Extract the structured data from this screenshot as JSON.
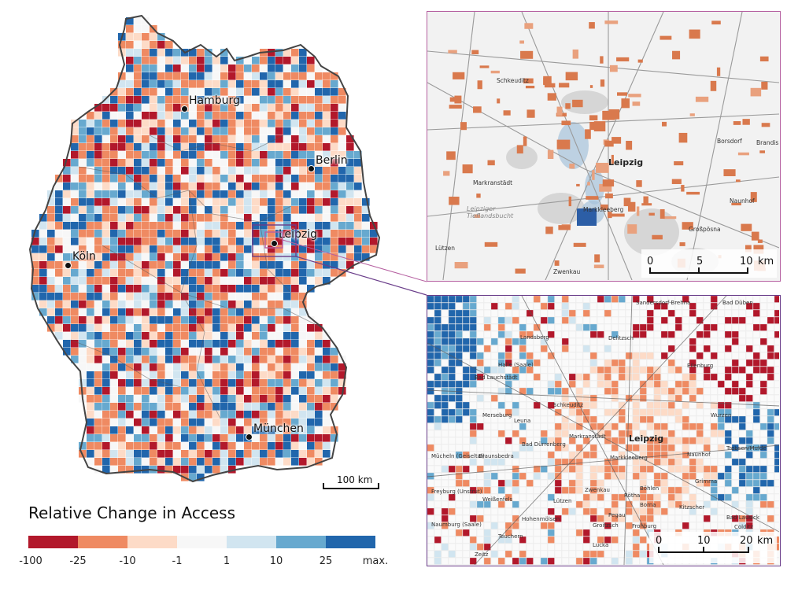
{
  "main_map": {
    "cities": [
      {
        "name": "Hamburg"
      },
      {
        "name": "Berlin"
      },
      {
        "name": "Leipzig"
      },
      {
        "name": "Köln"
      },
      {
        "name": "München"
      }
    ],
    "scale_label": "100 km"
  },
  "inset_top": {
    "city_label": "Leipzig",
    "place_labels": [
      "Schkeuditz",
      "Markranstädt",
      "Markkleeberg",
      "Lützen",
      "Zwenkau",
      "Naunhof",
      "Borsdorf",
      "Brandis",
      "Großpösna",
      "Leipziger Tieflandsbucht"
    ],
    "scale": {
      "ticks": [
        "0",
        "5",
        "10"
      ],
      "unit": "km"
    }
  },
  "inset_bottom": {
    "city_label": "Leipzig",
    "place_labels": [
      "Halle (Saale)",
      "Landsberg",
      "Delitzsch",
      "Schkeuditz",
      "Merseburg",
      "Leuna",
      "Markranstädt",
      "Markkleeberg",
      "Naunhof",
      "Grimma",
      "Borna",
      "Eilenburg",
      "Wurzen",
      "Bad Düben",
      "Zwenkau",
      "Weißenfels",
      "Hohenmölsen",
      "Pegau",
      "Groitzsch",
      "Lucka",
      "Bad Lausick",
      "Colditz",
      "Teuchern",
      "Braunsbedra",
      "Mücheln (Geiseltal)",
      "Bad Dürrenberg",
      "Lützen",
      "Naumburg (Saale)",
      "Freyburg (Unstrut)",
      "Sandersdorf-Brehna",
      "Bad Lauchstädt",
      "Zeitz",
      "Böhlen",
      "Rötha",
      "Frohburg",
      "Kitzscher",
      "Trebsen/Mulde"
    ],
    "scale": {
      "ticks": [
        "0",
        "10",
        "20"
      ],
      "unit": "km"
    }
  },
  "legend": {
    "title": "Relative Change in Access",
    "tick_labels": [
      "-100",
      "-25",
      "-10",
      "-1",
      "1",
      "10",
      "25",
      "max."
    ],
    "colors": [
      "#b2182b",
      "#ef8a62",
      "#fddbc7",
      "#f7f7f7",
      "#d1e5f0",
      "#67a9cf",
      "#2166ac"
    ]
  }
}
